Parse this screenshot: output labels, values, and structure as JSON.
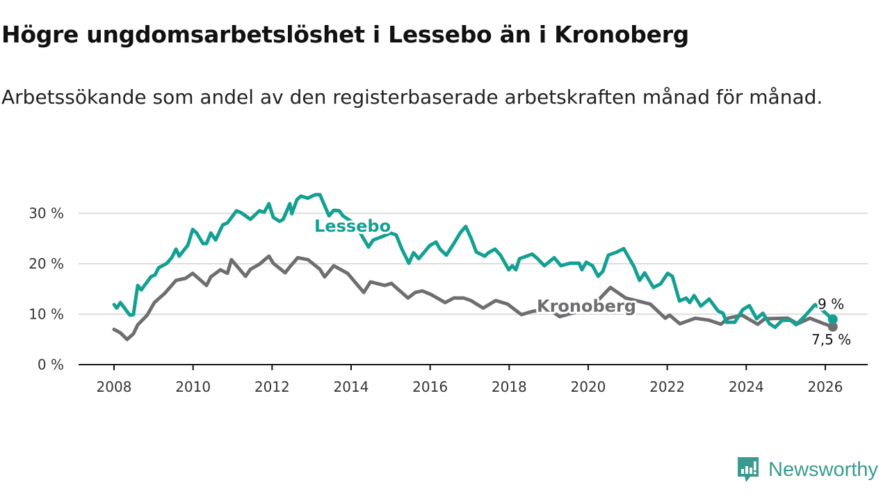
{
  "header": {
    "title": "Högre ungdomsarbetslöshet i Lessebo än i Kronoberg",
    "subtitle": "Arbetssökande som andel av den registerbaserade arbetskraften månad för månad."
  },
  "logo": {
    "text": "Newsworthy",
    "icon": "newsworthy-logo-icon",
    "color": "#3a9a8f"
  },
  "chart_data": {
    "type": "line",
    "title": "Högre ungdomsarbetslöshet i Lessebo än i Kronoberg",
    "xlabel": "",
    "ylabel": "",
    "xlim": [
      2008,
      2026.2
    ],
    "ylim": [
      0,
      33
    ],
    "y_ticks": [
      {
        "value": 0,
        "label": "0 %"
      },
      {
        "value": 10,
        "label": "10 %"
      },
      {
        "value": 20,
        "label": "20 %"
      },
      {
        "value": 30,
        "label": "30 %"
      }
    ],
    "x_ticks": [
      {
        "value": 2008,
        "label": "2008"
      },
      {
        "value": 2010,
        "label": "2010"
      },
      {
        "value": 2012,
        "label": "2012"
      },
      {
        "value": 2014,
        "label": "2014"
      },
      {
        "value": 2016,
        "label": "2016"
      },
      {
        "value": 2018,
        "label": "2018"
      },
      {
        "value": 2020,
        "label": "2020"
      },
      {
        "value": 2022,
        "label": "2022"
      },
      {
        "value": 2024,
        "label": "2024"
      },
      {
        "value": 2026,
        "label": "2026"
      }
    ],
    "grid": true,
    "series": [
      {
        "name": "Lessebo",
        "color": "#13a093",
        "end_label": "9 %",
        "x": [
          2008.0,
          2008.07,
          2008.16,
          2008.4,
          2008.49,
          2008.6,
          2008.69,
          2008.93,
          2009.04,
          2009.13,
          2009.34,
          2009.46,
          2009.57,
          2009.65,
          2009.87,
          2009.99,
          2010.09,
          2010.25,
          2010.34,
          2010.45,
          2010.57,
          2010.75,
          2010.87,
          2011.1,
          2011.22,
          2011.45,
          2011.68,
          2011.8,
          2011.92,
          2012.03,
          2012.19,
          2012.28,
          2012.45,
          2012.5,
          2012.63,
          2012.73,
          2012.91,
          2013.09,
          2013.21,
          2013.44,
          2013.56,
          2013.7,
          2013.79,
          2014.0,
          2014.18,
          2014.44,
          2014.56,
          2014.79,
          2015.0,
          2015.14,
          2015.28,
          2015.46,
          2015.58,
          2015.71,
          2015.99,
          2016.15,
          2016.25,
          2016.41,
          2016.6,
          2016.76,
          2016.9,
          2017.04,
          2017.17,
          2017.38,
          2017.48,
          2017.64,
          2017.78,
          2017.99,
          2018.08,
          2018.17,
          2018.26,
          2018.58,
          2018.72,
          2018.89,
          2019.14,
          2019.31,
          2019.54,
          2019.77,
          2019.84,
          2019.95,
          2020.11,
          2020.25,
          2020.37,
          2020.51,
          2020.72,
          2020.9,
          2021.16,
          2021.3,
          2021.43,
          2021.65,
          2021.83,
          2022.01,
          2022.13,
          2022.31,
          2022.48,
          2022.57,
          2022.68,
          2022.85,
          2023.06,
          2023.29,
          2023.41,
          2023.5,
          2023.71,
          2023.91,
          2024.08,
          2024.26,
          2024.42,
          2024.59,
          2024.73,
          2024.91,
          2025.12,
          2025.26,
          2025.47,
          2025.74,
          2025.97,
          2026.11,
          2026.19
        ],
        "values": [
          11.9,
          11.2,
          12.3,
          9.8,
          9.9,
          15.7,
          14.8,
          17.4,
          17.8,
          19.2,
          20.1,
          21.2,
          22.9,
          21.5,
          23.7,
          26.8,
          26.1,
          24.0,
          24.0,
          26.1,
          24.7,
          27.7,
          28.1,
          30.5,
          30.1,
          28.8,
          30.5,
          30.2,
          31.9,
          29.2,
          28.4,
          28.8,
          31.9,
          29.9,
          32.7,
          33.4,
          33.0,
          33.7,
          33.7,
          29.5,
          30.6,
          30.5,
          29.5,
          28.4,
          26.8,
          23.3,
          24.7,
          25.4,
          26.1,
          25.7,
          23.0,
          20.1,
          22.2,
          21.0,
          23.6,
          24.3,
          22.9,
          21.7,
          24.0,
          26.1,
          27.4,
          25.0,
          22.3,
          21.5,
          22.2,
          22.9,
          21.7,
          18.8,
          19.6,
          18.8,
          21.0,
          21.9,
          21.0,
          19.6,
          21.2,
          19.6,
          20.1,
          20.1,
          18.8,
          20.3,
          19.6,
          17.5,
          18.5,
          21.7,
          22.3,
          23.0,
          19.4,
          16.7,
          18.2,
          15.3,
          16.0,
          18.1,
          17.5,
          12.6,
          13.2,
          12.3,
          13.7,
          11.6,
          13.0,
          10.6,
          10.2,
          8.4,
          8.4,
          10.9,
          11.7,
          9.1,
          10.2,
          8.1,
          7.4,
          8.8,
          8.8,
          7.9,
          9.5,
          11.9,
          10.5,
          9.5,
          9.0
        ]
      },
      {
        "name": "Kronoberg",
        "color": "#6e6d70",
        "end_label": "7,5 %",
        "x": [
          2008.0,
          2008.16,
          2008.33,
          2008.49,
          2008.6,
          2008.84,
          2009.02,
          2009.28,
          2009.57,
          2009.81,
          2009.99,
          2010.34,
          2010.45,
          2010.69,
          2010.87,
          2010.97,
          2011.33,
          2011.45,
          2011.68,
          2011.92,
          2012.03,
          2012.33,
          2012.45,
          2012.65,
          2012.91,
          2013.21,
          2013.33,
          2013.56,
          2013.91,
          2014.32,
          2014.49,
          2014.85,
          2015.02,
          2015.44,
          2015.62,
          2015.8,
          2016.02,
          2016.38,
          2016.6,
          2016.85,
          2017.03,
          2017.34,
          2017.66,
          2017.96,
          2018.31,
          2018.61,
          2019.02,
          2019.28,
          2019.72,
          2020.16,
          2020.56,
          2020.95,
          2021.57,
          2021.95,
          2022.06,
          2022.32,
          2022.71,
          2023.06,
          2023.36,
          2023.54,
          2023.89,
          2024.29,
          2024.47,
          2025.05,
          2025.3,
          2025.61,
          2025.97,
          2026.19
        ],
        "values": [
          7.0,
          6.3,
          5.0,
          6.1,
          7.9,
          9.8,
          12.3,
          14.1,
          16.7,
          17.1,
          18.1,
          15.7,
          17.4,
          18.8,
          18.1,
          20.8,
          17.5,
          18.9,
          19.9,
          21.5,
          20.1,
          18.2,
          19.4,
          21.2,
          20.8,
          18.9,
          17.4,
          19.6,
          18.1,
          14.3,
          16.4,
          15.7,
          16.1,
          13.2,
          14.3,
          14.6,
          13.9,
          12.3,
          13.2,
          13.2,
          12.7,
          11.2,
          12.7,
          12.0,
          9.9,
          10.6,
          10.9,
          9.5,
          10.5,
          12.0,
          15.3,
          13.2,
          12.0,
          9.2,
          9.8,
          8.1,
          9.2,
          8.8,
          8.0,
          9.2,
          9.8,
          8.0,
          9.1,
          9.2,
          8.1,
          9.2,
          8.1,
          7.5
        ]
      }
    ]
  }
}
